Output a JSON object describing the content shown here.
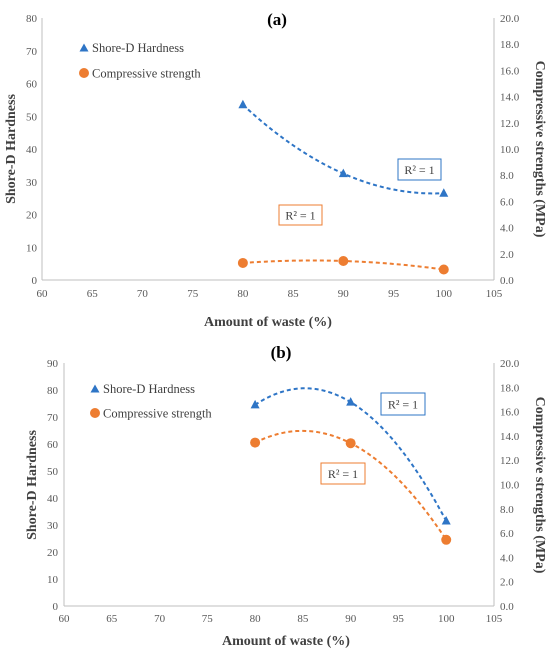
{
  "chart_data": [
    {
      "type": "scatter",
      "panel_label": "(a)",
      "xlabel": "Amount of waste (%)",
      "ylabel": "Shore-D Hardness",
      "y2label": "Compressive strengths (MPa)",
      "xlim": [
        60,
        105
      ],
      "ylim": [
        0,
        80
      ],
      "y2lim": [
        0,
        20
      ],
      "xticks": [
        "60",
        "65",
        "70",
        "75",
        "80",
        "85",
        "90",
        "95",
        "100",
        "105"
      ],
      "yticks": [
        "0",
        "10",
        "20",
        "30",
        "40",
        "50",
        "60",
        "70",
        "80"
      ],
      "y2ticks": [
        "0.0",
        "2.0",
        "4.0",
        "6.0",
        "8.0",
        "10.0",
        "12.0",
        "14.0",
        "16.0",
        "18.0",
        "20.0"
      ],
      "grid": false,
      "legend_position": "top-left",
      "series": [
        {
          "name": "Shore-D Hardness",
          "axis": "left",
          "marker": "triangle",
          "color": "#2E75C6",
          "x": [
            80,
            90,
            100
          ],
          "y": [
            53.5,
            32.5,
            26.5
          ],
          "trendline": "polynomial",
          "r2_label": "R² = 1"
        },
        {
          "name": "Compressive strength",
          "axis": "right",
          "marker": "circle",
          "color": "#ED7D31",
          "x": [
            80,
            90,
            100
          ],
          "y": [
            1.3,
            1.45,
            0.8
          ],
          "trendline": "polynomial",
          "r2_label": "R² = 1"
        }
      ]
    },
    {
      "type": "scatter",
      "panel_label": "(b)",
      "xlabel": "Amount of waste (%)",
      "ylabel": "Shore-D Hardness",
      "y2label": "Compressive strengths (MPa)",
      "xlim": [
        60,
        105
      ],
      "ylim": [
        0,
        90
      ],
      "y2lim": [
        0,
        20
      ],
      "xticks": [
        "60",
        "65",
        "70",
        "75",
        "80",
        "85",
        "90",
        "95",
        "100",
        "105"
      ],
      "yticks": [
        "0",
        "10",
        "20",
        "30",
        "40",
        "50",
        "60",
        "70",
        "80",
        "90"
      ],
      "y2ticks": [
        "0.0",
        "2.0",
        "4.0",
        "6.0",
        "8.0",
        "10.0",
        "12.0",
        "14.0",
        "16.0",
        "18.0",
        "20.0"
      ],
      "grid": false,
      "legend_position": "top-left",
      "series": [
        {
          "name": "Shore-D Hardness",
          "axis": "left",
          "marker": "triangle",
          "color": "#2E75C6",
          "x": [
            80,
            90,
            100
          ],
          "y": [
            74.5,
            75.5,
            31.5
          ],
          "trendline": "polynomial",
          "r2_label": "R² = 1"
        },
        {
          "name": "Compressive strength",
          "axis": "right",
          "marker": "circle",
          "color": "#ED7D31",
          "x": [
            80,
            90,
            100
          ],
          "y": [
            13.45,
            13.4,
            5.45
          ],
          "trendline": "polynomial",
          "r2_label": "R² = 1"
        }
      ]
    }
  ]
}
